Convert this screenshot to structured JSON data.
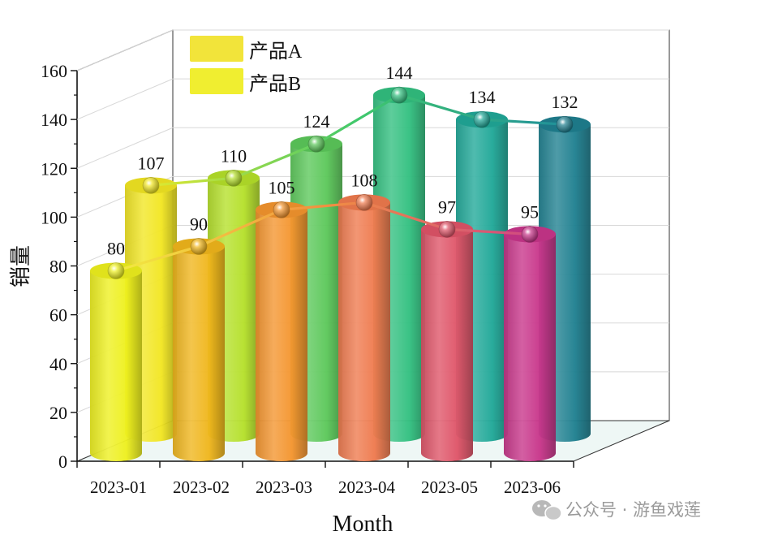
{
  "chart_data": {
    "type": "bar",
    "title": "",
    "xlabel": "Month",
    "ylabel": "销量",
    "categories": [
      "2023-01",
      "2023-02",
      "2023-03",
      "2023-04",
      "2023-05",
      "2023-06"
    ],
    "series": [
      {
        "name": "产品A",
        "values": [
          80,
          90,
          105,
          108,
          97,
          95
        ]
      },
      {
        "name": "产品B",
        "values": [
          107,
          110,
          124,
          144,
          134,
          132
        ]
      }
    ],
    "ylim": [
      0,
      160
    ],
    "yticks": [
      0,
      20,
      40,
      60,
      80,
      100,
      120,
      140,
      160
    ],
    "grid": true,
    "legend_position": "top-left",
    "style": "3d-cylinder with connecting lines and sphere markers",
    "colors_A": [
      "#eef01e",
      "#f0b61c",
      "#f4952e",
      "#ef7a4e",
      "#df5468",
      "#c8358a"
    ],
    "colors_B": [
      "#f2e622",
      "#b5e02a",
      "#5cc85a",
      "#32c080",
      "#20a898",
      "#1f8090"
    ],
    "legend_color_A": "#f2e43a",
    "legend_color_B": "#f0ee30"
  },
  "watermark": {
    "text": "公众号 · 游鱼戏莲"
  }
}
